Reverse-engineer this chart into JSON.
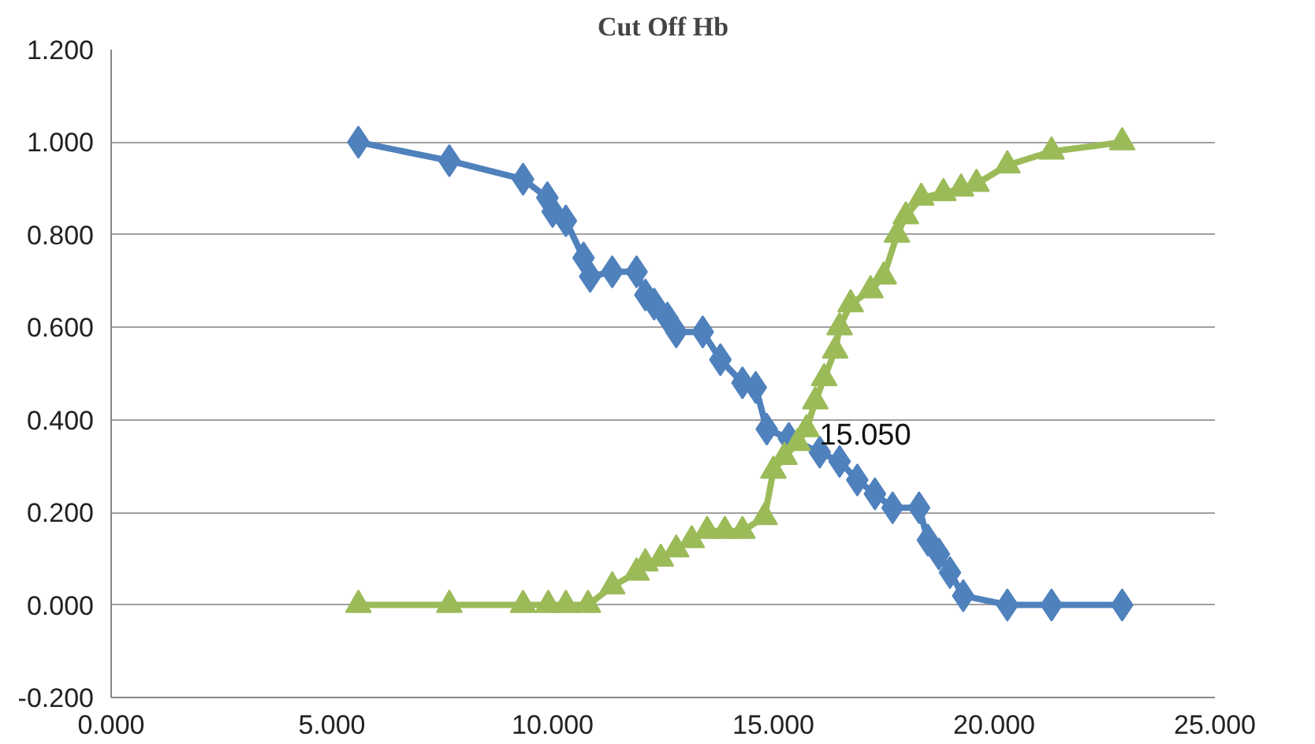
{
  "chart_data": {
    "type": "line",
    "title": "Cut Off Hb",
    "grid": "y",
    "xlim": [
      0,
      25
    ],
    "xticks": [
      {
        "value": 0,
        "label": "0.000"
      },
      {
        "value": 5,
        "label": "5.000"
      },
      {
        "value": 10,
        "label": "10.000"
      },
      {
        "value": 15,
        "label": "15.000"
      },
      {
        "value": 20,
        "label": "20.000"
      },
      {
        "value": 25,
        "label": "25.000"
      }
    ],
    "ylim": [
      -0.2,
      1.2
    ],
    "yticks": [
      {
        "value": -0.2,
        "label": "-0.200"
      },
      {
        "value": 0,
        "label": "0.000"
      },
      {
        "value": 0.2,
        "label": "0.200"
      },
      {
        "value": 0.4,
        "label": "0.400"
      },
      {
        "value": 0.6,
        "label": "0.600"
      },
      {
        "value": 0.8,
        "label": "0.800"
      },
      {
        "value": 1.0,
        "label": "1.000"
      },
      {
        "value": 1.2,
        "label": "1.200"
      }
    ],
    "annotations": [
      {
        "text": "15.050",
        "x": 15.9,
        "y": 0.37
      }
    ],
    "series": [
      {
        "color": "#4f81bd",
        "marker": "diamond",
        "x": [
          5.6,
          7.66,
          9.33,
          9.88,
          10.0,
          10.3,
          10.7,
          10.85,
          11.35,
          11.9,
          12.1,
          12.3,
          12.6,
          12.8,
          13.4,
          13.8,
          14.3,
          14.6,
          14.85,
          15.35,
          16.05,
          16.5,
          16.9,
          17.3,
          17.7,
          18.3,
          18.5,
          18.75,
          19.0,
          19.3,
          20.3,
          21.3,
          22.9
        ],
        "values": [
          1.0,
          0.96,
          0.92,
          0.88,
          0.85,
          0.83,
          0.75,
          0.71,
          0.72,
          0.72,
          0.67,
          0.65,
          0.62,
          0.59,
          0.59,
          0.53,
          0.48,
          0.47,
          0.38,
          0.36,
          0.33,
          0.31,
          0.27,
          0.24,
          0.21,
          0.21,
          0.14,
          0.11,
          0.07,
          0.02,
          0.0,
          0.0,
          0.0
        ]
      },
      {
        "color": "#9bbb59",
        "marker": "triangle",
        "x": [
          5.6,
          7.66,
          9.33,
          9.9,
          10.3,
          10.8,
          11.35,
          11.9,
          12.1,
          12.45,
          12.8,
          13.15,
          13.5,
          13.9,
          14.3,
          14.8,
          15.0,
          15.25,
          15.55,
          15.75,
          15.95,
          16.15,
          16.4,
          16.5,
          16.75,
          17.2,
          17.5,
          17.8,
          18.0,
          18.35,
          18.85,
          19.25,
          19.6,
          20.3,
          21.3,
          22.9
        ],
        "values": [
          0.0,
          0.0,
          0.0,
          0.0,
          0.0,
          0.0,
          0.04,
          0.07,
          0.09,
          0.1,
          0.12,
          0.14,
          0.16,
          0.16,
          0.16,
          0.19,
          0.29,
          0.32,
          0.35,
          0.38,
          0.44,
          0.49,
          0.55,
          0.6,
          0.65,
          0.68,
          0.71,
          0.8,
          0.84,
          0.88,
          0.89,
          0.9,
          0.91,
          0.95,
          0.98,
          1.0
        ]
      }
    ]
  }
}
